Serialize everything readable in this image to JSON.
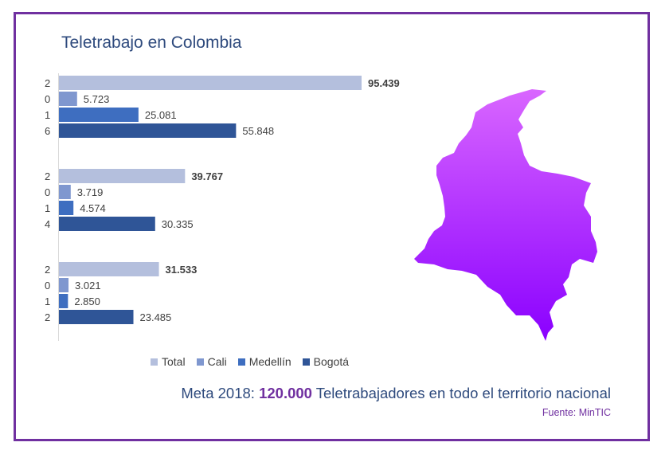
{
  "title": "Teletrabajo en Colombia",
  "chart_data": {
    "type": "bar",
    "orientation": "horizontal",
    "groups": [
      {
        "label": [
          "2",
          "0",
          "1",
          "6"
        ],
        "values": [
          95439,
          5723,
          25081,
          55848
        ],
        "labels": [
          "95.439",
          "5.723",
          "25.081",
          "55.848"
        ]
      },
      {
        "label": [
          "2",
          "0",
          "1",
          "4"
        ],
        "values": [
          39767,
          3719,
          4574,
          30335
        ],
        "labels": [
          "39.767",
          "3.719",
          "4.574",
          "30.335"
        ]
      },
      {
        "label": [
          "2",
          "0",
          "1",
          "2"
        ],
        "values": [
          31533,
          3021,
          2850,
          23485
        ],
        "labels": [
          "31.533",
          "3.021",
          "2.850",
          "23.485"
        ]
      }
    ],
    "series": [
      {
        "name": "Total",
        "color": "#b4bfdd"
      },
      {
        "name": "Cali",
        "color": "#7f97cf"
      },
      {
        "name": "Medellín",
        "color": "#3e6ec0"
      },
      {
        "name": "Bogotá",
        "color": "#2f5597"
      }
    ],
    "legend_position": "bottom",
    "grid": false
  },
  "map": {
    "name": "colombia-map",
    "color_top": "#d966ff",
    "color_bottom": "#8a00ff"
  },
  "meta": {
    "prefix": "Meta 2018:",
    "number": "120.000",
    "suffix": "Teletrabajadores  en todo el territorio nacional"
  },
  "source": "Fuente: MinTIC"
}
